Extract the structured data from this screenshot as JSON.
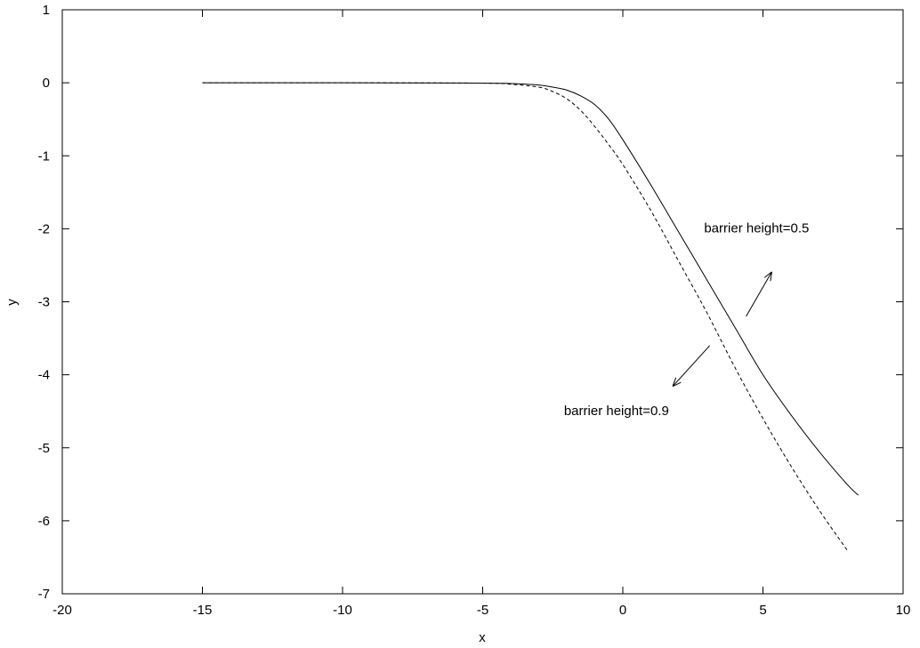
{
  "chart_data": {
    "type": "line",
    "title": "",
    "xlabel": "x",
    "ylabel": "y",
    "xlim": [
      -20,
      10
    ],
    "ylim": [
      -7,
      1
    ],
    "x_ticks": [
      -20,
      -15,
      -10,
      -5,
      0,
      5,
      10
    ],
    "y_ticks": [
      1,
      0,
      -1,
      -2,
      -3,
      -4,
      -5,
      -6,
      -7
    ],
    "grid": false,
    "legend": "none",
    "series": [
      {
        "style": "solid",
        "color": "#000000",
        "x": [
          -15,
          -10,
          -5,
          -4,
          -3,
          -2.5,
          -2,
          -1.5,
          -1,
          -0.5,
          0,
          1,
          2,
          3,
          4,
          5,
          6,
          7,
          8,
          8.4
        ],
        "y": [
          0,
          0,
          -0.005,
          -0.01,
          -0.03,
          -0.06,
          -0.1,
          -0.18,
          -0.3,
          -0.5,
          -0.78,
          -1.4,
          -2.05,
          -2.7,
          -3.35,
          -4.0,
          -4.55,
          -5.05,
          -5.5,
          -5.65
        ]
      },
      {
        "style": "dashed",
        "color": "#000000",
        "x": [
          -15,
          -10,
          -5,
          -4,
          -3,
          -2.5,
          -2,
          -1.5,
          -1,
          -0.5,
          0,
          1,
          2,
          3,
          4,
          5,
          6,
          7,
          8
        ],
        "y": [
          0,
          0,
          -0.005,
          -0.02,
          -0.06,
          -0.12,
          -0.22,
          -0.38,
          -0.6,
          -0.85,
          -1.12,
          -1.75,
          -2.45,
          -3.15,
          -3.9,
          -4.6,
          -5.25,
          -5.85,
          -6.4
        ]
      }
    ],
    "annotations": [
      {
        "text": "barrier height=0.5",
        "x": 2.9,
        "y": -2.05,
        "anchor": "start"
      },
      {
        "text": "barrier height=0.9",
        "x": -2.1,
        "y": -4.55,
        "anchor": "start"
      }
    ],
    "arrows": [
      {
        "from": [
          4.4,
          -3.2
        ],
        "to": [
          5.3,
          -2.6
        ]
      },
      {
        "from": [
          3.1,
          -3.6
        ],
        "to": [
          1.8,
          -4.15
        ]
      }
    ]
  }
}
